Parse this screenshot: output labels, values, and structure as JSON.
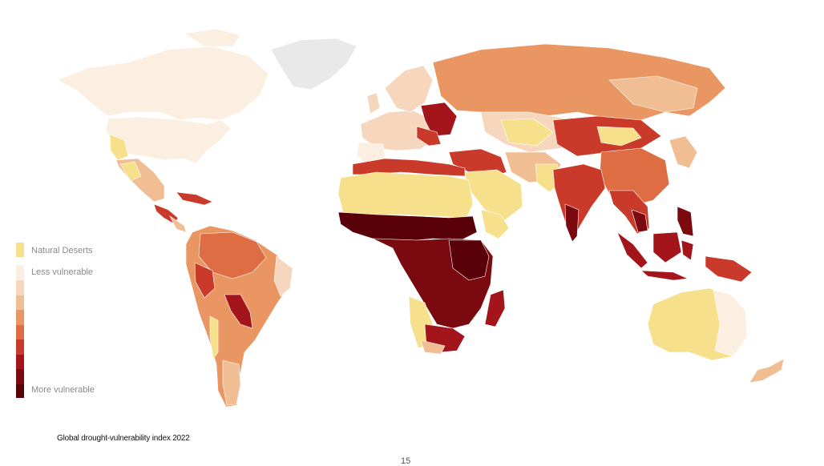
{
  "colors": {
    "desert": "#f6e08c",
    "c0": "#fbefe2",
    "c1": "#f6d7bd",
    "c2": "#f1bd93",
    "c3": "#ea9663",
    "c4": "#de6d43",
    "c5": "#c93a2a",
    "c6": "#a3151b",
    "c7": "#7a0a10",
    "c8": "#5a0008",
    "greenland": "#e9e9e9"
  },
  "legend": {
    "natural_deserts": "Natural Deserts",
    "less_vulnerable": "Less vulnerable",
    "more_vulnerable": "More vulnerable"
  },
  "caption": "Global drought-vulnerability index 2022",
  "page_number": "15"
}
